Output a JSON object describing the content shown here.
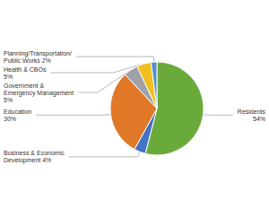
{
  "chart_data": {
    "type": "pie",
    "categories": [
      "Residents\n54%",
      "Business & Economic\nDevelopment 4%",
      "Education\n30%",
      "Government &\nEmergency Management\n5%",
      "Health & CBOs\n5%",
      "Planning/Transportation/\nPublic Works 2%"
    ],
    "values": [
      54,
      4,
      30,
      5,
      5,
      2
    ],
    "colors": [
      "#6aaa3a",
      "#4472c4",
      "#e07828",
      "#a0a2a8",
      "#f0c020",
      "#5090d0"
    ]
  }
}
